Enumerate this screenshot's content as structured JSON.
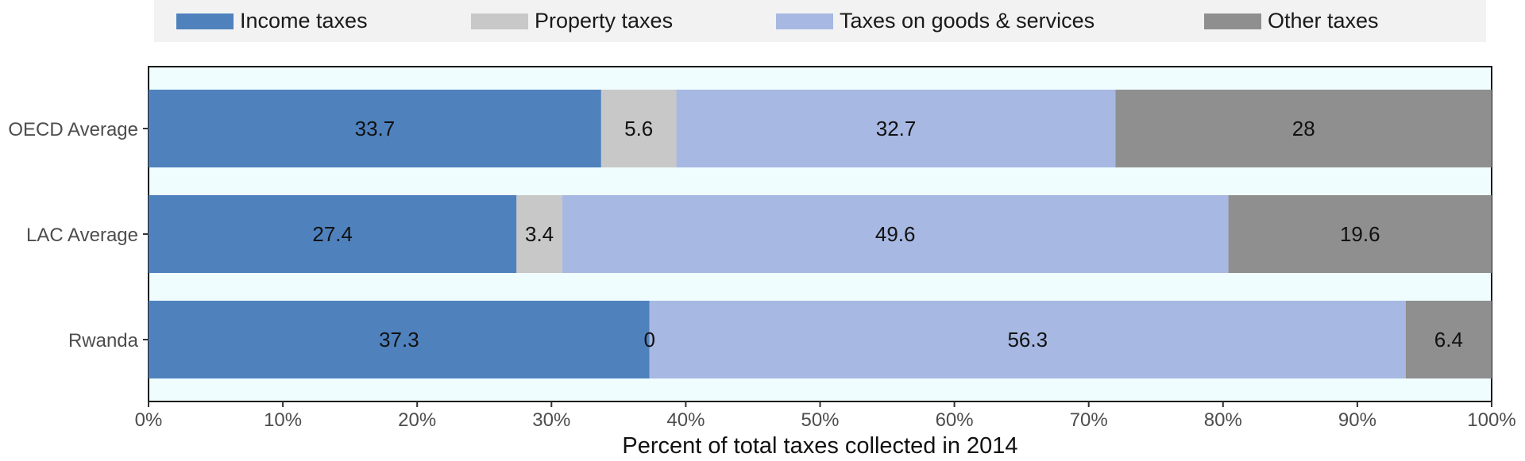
{
  "chart_data": {
    "type": "bar",
    "orientation": "horizontal",
    "stacked": true,
    "categories": [
      "OECD Average",
      "LAC Average",
      "Rwanda"
    ],
    "series": [
      {
        "name": "Income taxes",
        "color": "#4f81bd",
        "values": [
          33.7,
          27.4,
          37.3
        ],
        "labels": [
          "33.7",
          "27.4",
          "37.3"
        ]
      },
      {
        "name": "Property taxes",
        "color": "#c8c8c8",
        "values": [
          5.6,
          3.4,
          0
        ],
        "labels": [
          "5.6",
          "3.4",
          "0"
        ]
      },
      {
        "name": "Taxes on goods & services",
        "color": "#a7b8e2",
        "values": [
          32.7,
          49.6,
          56.3
        ],
        "labels": [
          "32.7",
          "49.6",
          "56.3"
        ]
      },
      {
        "name": "Other taxes",
        "color": "#8f8f8f",
        "values": [
          28,
          19.6,
          6.4
        ],
        "labels": [
          "28",
          "19.6",
          "6.4"
        ]
      }
    ],
    "xlabel": "Percent of total taxes collected in 2014",
    "ylabel": "",
    "xlim": [
      0,
      100
    ],
    "x_ticks": [
      "0%",
      "10%",
      "20%",
      "30%",
      "40%",
      "50%",
      "60%",
      "70%",
      "80%",
      "90%",
      "100%"
    ],
    "legend_position": "top",
    "grid": false,
    "panel_background": "#f0fdfe",
    "legend_background": "#f2f2f2"
  }
}
